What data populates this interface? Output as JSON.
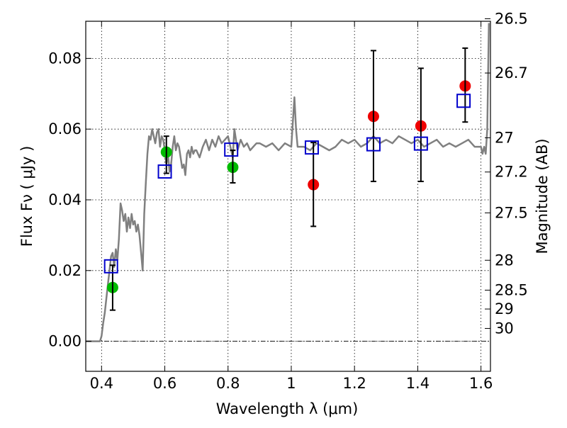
{
  "chart_data": {
    "type": "scatter",
    "xlabel": "Wavelength  λ (μm)",
    "ylabel": "Flux  Fν  ( μJy )",
    "ylabel_right": "Magnitude (AB)",
    "xlim": [
      0.35,
      1.63
    ],
    "ylim": [
      -0.0085,
      0.0905
    ],
    "grid": true,
    "x_ticks": [
      0.4,
      0.6,
      0.8,
      1.0,
      1.2,
      1.4,
      1.6
    ],
    "x_tick_labels": [
      "0.4",
      "0.6",
      "0.8",
      "1",
      "1.2",
      "1.4",
      "1.6"
    ],
    "y_ticks": [
      0.0,
      0.02,
      0.04,
      0.06,
      0.08
    ],
    "y_tick_labels": [
      "0.00",
      "0.02",
      "0.04",
      "0.06",
      "0.08"
    ],
    "right_ticks": [
      {
        "label": "26.5",
        "mag": 26.5
      },
      {
        "label": "26.7",
        "mag": 26.7
      },
      {
        "label": "27",
        "mag": 27.0
      },
      {
        "label": "27.2",
        "mag": 27.2
      },
      {
        "label": "27.5",
        "mag": 27.5
      },
      {
        "label": "28",
        "mag": 28.0
      },
      {
        "label": "28.5",
        "mag": 28.5
      },
      {
        "label": "29",
        "mag": 29.0
      },
      {
        "label": "30",
        "mag": 30.0
      }
    ],
    "series": [
      {
        "kind": "line",
        "color": "#808080",
        "x": [
          0.35,
          0.38,
          0.395,
          0.4,
          0.405,
          0.41,
          0.415,
          0.42,
          0.425,
          0.43,
          0.435,
          0.44,
          0.445,
          0.45,
          0.455,
          0.46,
          0.465,
          0.47,
          0.475,
          0.48,
          0.485,
          0.49,
          0.495,
          0.5,
          0.505,
          0.51,
          0.515,
          0.52,
          0.525,
          0.53,
          0.535,
          0.54,
          0.545,
          0.55,
          0.555,
          0.56,
          0.565,
          0.57,
          0.575,
          0.58,
          0.585,
          0.59,
          0.595,
          0.6,
          0.605,
          0.61,
          0.615,
          0.62,
          0.625,
          0.63,
          0.635,
          0.64,
          0.645,
          0.65,
          0.655,
          0.66,
          0.665,
          0.67,
          0.675,
          0.68,
          0.685,
          0.69,
          0.695,
          0.7,
          0.71,
          0.72,
          0.73,
          0.74,
          0.75,
          0.76,
          0.77,
          0.78,
          0.79,
          0.8,
          0.81,
          0.815,
          0.82,
          0.83,
          0.84,
          0.85,
          0.86,
          0.87,
          0.88,
          0.89,
          0.9,
          0.92,
          0.94,
          0.96,
          0.98,
          1.0,
          1.005,
          1.01,
          1.015,
          1.02,
          1.04,
          1.06,
          1.08,
          1.1,
          1.12,
          1.14,
          1.16,
          1.18,
          1.2,
          1.22,
          1.24,
          1.26,
          1.28,
          1.3,
          1.32,
          1.34,
          1.36,
          1.38,
          1.4,
          1.42,
          1.44,
          1.46,
          1.48,
          1.5,
          1.52,
          1.54,
          1.56,
          1.58,
          1.6,
          1.605,
          1.61,
          1.615,
          1.62,
          1.625
        ],
        "y": [
          0.0,
          0.0,
          0.0,
          0.0015,
          0.005,
          0.008,
          0.012,
          0.016,
          0.02,
          0.024,
          0.025,
          0.021,
          0.026,
          0.023,
          0.029,
          0.039,
          0.037,
          0.034,
          0.036,
          0.031,
          0.035,
          0.032,
          0.036,
          0.033,
          0.034,
          0.031,
          0.033,
          0.03,
          0.025,
          0.02,
          0.036,
          0.045,
          0.053,
          0.058,
          0.057,
          0.06,
          0.058,
          0.056,
          0.059,
          0.06,
          0.055,
          0.058,
          0.057,
          0.054,
          0.05,
          0.053,
          0.048,
          0.05,
          0.055,
          0.058,
          0.054,
          0.056,
          0.055,
          0.052,
          0.049,
          0.05,
          0.047,
          0.053,
          0.054,
          0.052,
          0.055,
          0.053,
          0.054,
          0.054,
          0.052,
          0.055,
          0.057,
          0.054,
          0.057,
          0.055,
          0.058,
          0.056,
          0.057,
          0.058,
          0.054,
          0.052,
          0.06,
          0.054,
          0.057,
          0.055,
          0.056,
          0.054,
          0.055,
          0.056,
          0.056,
          0.055,
          0.056,
          0.054,
          0.056,
          0.055,
          0.062,
          0.069,
          0.06,
          0.055,
          0.055,
          0.054,
          0.056,
          0.055,
          0.054,
          0.055,
          0.057,
          0.056,
          0.057,
          0.055,
          0.056,
          0.058,
          0.056,
          0.057,
          0.056,
          0.058,
          0.057,
          0.056,
          0.057,
          0.055,
          0.056,
          0.057,
          0.055,
          0.056,
          0.055,
          0.056,
          0.057,
          0.055,
          0.055,
          0.053,
          0.055,
          0.053,
          0.06,
          0.09
        ]
      },
      {
        "kind": "points",
        "color": "#00bb00",
        "x": [
          0.435,
          0.605,
          0.815
        ],
        "y": [
          0.0152,
          0.0535,
          0.0492
        ]
      },
      {
        "kind": "points",
        "color": "#ee0000",
        "x": [
          1.07,
          1.26,
          1.41,
          1.55
        ],
        "y": [
          0.0443,
          0.0636,
          0.0609,
          0.0722
        ]
      },
      {
        "kind": "errorbars",
        "color": "#000000",
        "x": [
          0.435,
          0.605,
          0.815,
          1.07,
          1.26,
          1.41,
          1.55
        ],
        "y": [
          0.0152,
          0.0535,
          0.0492,
          0.0443,
          0.0636,
          0.0609,
          0.0722
        ],
        "lower": [
          0.0088,
          0.0475,
          0.0448,
          0.0325,
          0.0452,
          0.0452,
          0.062
        ],
        "upper": [
          0.0215,
          0.058,
          0.054,
          0.0562,
          0.0822,
          0.0772,
          0.0829
        ]
      },
      {
        "kind": "open-squares",
        "color": "#0000cc",
        "x": [
          0.43,
          0.6,
          0.81,
          1.065,
          1.26,
          1.41,
          1.545
        ],
        "y": [
          0.0212,
          0.048,
          0.0542,
          0.0548,
          0.0557,
          0.0559,
          0.068
        ]
      }
    ]
  }
}
